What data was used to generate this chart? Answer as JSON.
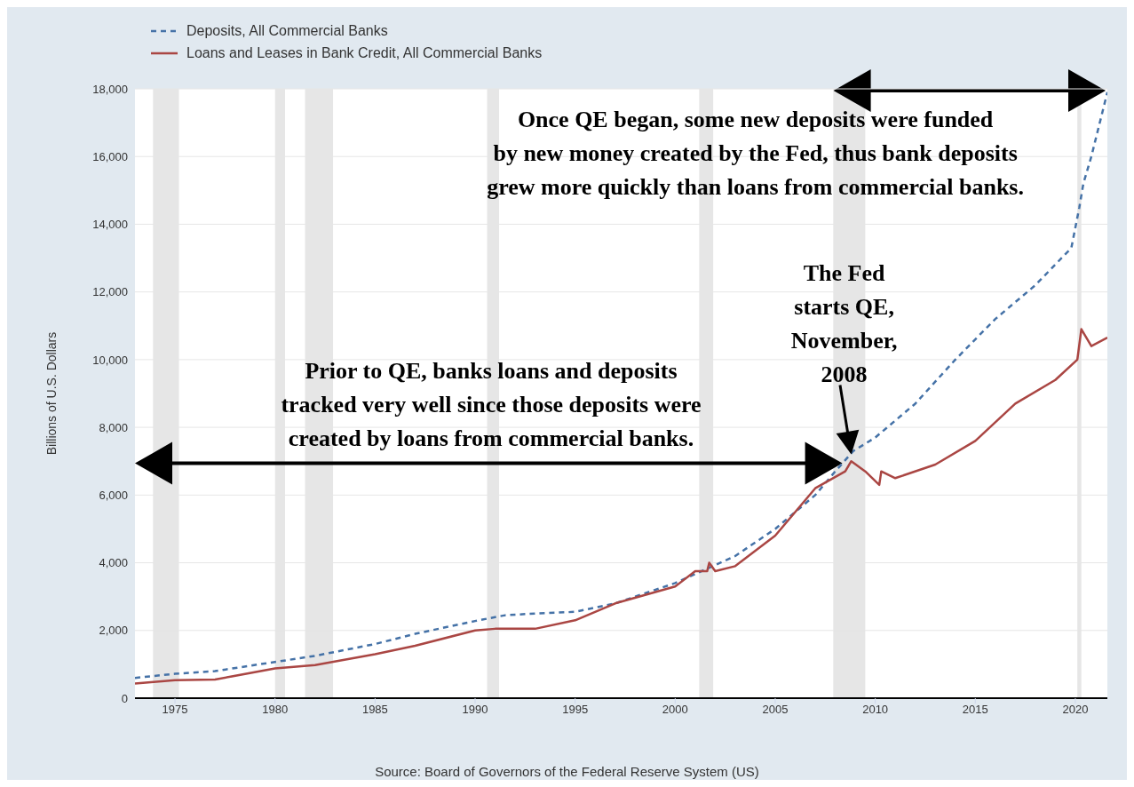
{
  "chart_data": {
    "type": "line",
    "legend": "top left",
    "grid": "y",
    "ylabel": "Billions of U.S. Dollars",
    "xlim": [
      1973,
      2021.6
    ],
    "xticks": [
      1975,
      1980,
      1985,
      1990,
      1995,
      2000,
      2005,
      2010,
      2015,
      2020
    ],
    "ylim": [
      0,
      18000
    ],
    "yticks": [
      0,
      {
        "value": 2000,
        "label": "2,000"
      },
      {
        "value": 4000,
        "label": "4,000"
      },
      {
        "value": 6000,
        "label": "6,000"
      },
      {
        "value": 8000,
        "label": "8,000"
      },
      {
        "value": 10000,
        "label": "10,000"
      },
      {
        "value": 12000,
        "label": "12,000"
      },
      {
        "value": 14000,
        "label": "14,000"
      },
      {
        "value": 16000,
        "label": "16,000"
      },
      {
        "value": 18000,
        "label": "18,000"
      }
    ],
    "series": [
      {
        "name": "Deposits, All Commercial Banks",
        "color": "#4572a7",
        "line_style": "dashed",
        "x": [
          1973,
          1975,
          1977,
          1980,
          1982,
          1985,
          1987,
          1990,
          1991.5,
          1993,
          1995,
          1997,
          2000,
          2001.5,
          2003,
          2005,
          2007,
          2008,
          2008.9,
          2010,
          2012,
          2014,
          2016,
          2018,
          2019.8,
          2020.2,
          2020.4,
          2020.8,
          2021.6
        ],
        "values": [
          600,
          720,
          800,
          1070,
          1250,
          1600,
          1900,
          2280,
          2450,
          2500,
          2550,
          2800,
          3400,
          3800,
          4200,
          5000,
          6000,
          6700,
          7300,
          7700,
          8700,
          10000,
          11200,
          12200,
          13300,
          14500,
          15200,
          16000,
          17900
        ]
      },
      {
        "name": "Loans and Leases in Bank Credit, All Commercial Banks",
        "color": "#aa4643",
        "line_style": "solid",
        "x": [
          1973,
          1975,
          1977,
          1980,
          1982,
          1985,
          1987,
          1990,
          1991,
          1993,
          1995,
          1997,
          2000,
          2001,
          2001.6,
          2001.7,
          2002,
          2003,
          2005,
          2007,
          2008.5,
          2008.8,
          2009.5,
          2010.2,
          2010.3,
          2011,
          2013,
          2015,
          2017,
          2019,
          2020.1,
          2020.3,
          2020.8,
          2021.6
        ],
        "values": [
          430,
          530,
          550,
          880,
          980,
          1300,
          1550,
          2000,
          2050,
          2050,
          2300,
          2800,
          3300,
          3750,
          3750,
          4000,
          3750,
          3900,
          4800,
          6200,
          6700,
          7000,
          6700,
          6300,
          6700,
          6500,
          6900,
          7600,
          8700,
          9400,
          10000,
          10900,
          10400,
          10650
        ]
      }
    ],
    "bands": [
      {
        "axis": "x",
        "from": 1973.9,
        "to": 1975.2,
        "color": "#e6e6e6"
      },
      {
        "axis": "x",
        "from": 1980,
        "to": 1980.5,
        "color": "#e6e6e6"
      },
      {
        "axis": "x",
        "from": 1981.5,
        "to": 1982.9,
        "color": "#e6e6e6"
      },
      {
        "axis": "x",
        "from": 1990.6,
        "to": 1991.2,
        "color": "#e6e6e6"
      },
      {
        "axis": "x",
        "from": 2001.2,
        "to": 2001.9,
        "color": "#e6e6e6"
      },
      {
        "axis": "x",
        "from": 2007.9,
        "to": 2009.5,
        "color": "#e6e6e6"
      },
      {
        "axis": "x",
        "from": 2020.1,
        "to": 2020.3,
        "color": "#e6e6e6"
      }
    ],
    "annotations": [
      {
        "text": "Once QE began, some new deposits were funded\nby new money created by the Fed, thus bank deposits\ngrew more quickly than loans from commercial banks.",
        "x": 2008.8,
        "y": 18000
      },
      "Prior to QE, banks loans and deposits\ntracked very well since those deposits were\ncreated by loans from commercial banks.",
      {
        "text": "The Fed\nstarts QE,\nNovember,\n2008",
        "x": 2008.8,
        "y": 7200
      },
      "Source: Board of Governors of the Federal Reserve System (US)"
    ]
  }
}
